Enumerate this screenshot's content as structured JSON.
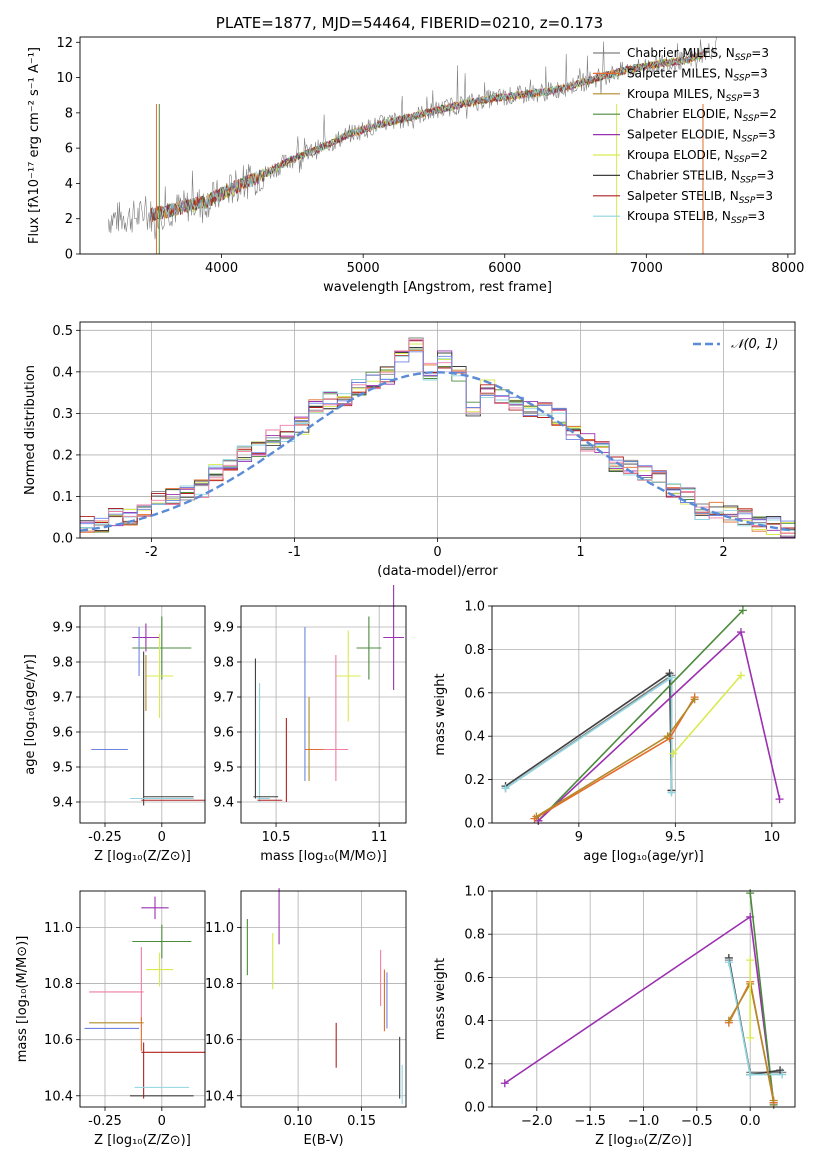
{
  "colors": {
    "chabrier_miles": "#808080",
    "salpeter_miles": "#e36d2c",
    "kroupa_miles": "#b38a2a",
    "chabrier_elodie": "#4c8a3c",
    "salpeter_elodie": "#9b30b0",
    "kroupa_elodie": "#d9ea4e",
    "chabrier_stelib": "#404040",
    "salpeter_stelib": "#b22020",
    "kroupa_stelib": "#8fd6e0",
    "normal_curve": "#5b8bd6",
    "pink": "#ee7fa3",
    "blue": "#6f84e0",
    "grid": "#b0b0b0"
  },
  "chart_data": [
    {
      "type": "line",
      "title": "PLATE=1877, MJD=54464, FIBERID=0210, z=0.173",
      "xlabel": "wavelength [Angstrom, rest frame]",
      "ylabel": "Flux [fλ10⁻¹⁷ erg cm⁻² s⁻¹ A⁻¹]",
      "xlim": [
        3000,
        8050
      ],
      "ylim": [
        0,
        12.3
      ],
      "xticks": [
        4000,
        5000,
        6000,
        7000,
        8000
      ],
      "yticks": [
        0,
        2,
        4,
        6,
        8,
        10,
        12
      ],
      "grid": false,
      "legend_position": "top-right",
      "series": [
        {
          "name": "Chabrier MILES, N",
          "sub": "SSP",
          "eq": "=3",
          "color": "#808080",
          "x": [
            3200,
            3500,
            3700,
            3900,
            4100,
            4300,
            4500,
            4700,
            4900,
            5100,
            5300,
            5500,
            5700,
            5900,
            6100,
            6300,
            6500,
            6700,
            6900,
            7100,
            7300,
            7500
          ],
          "y": [
            2.0,
            2.2,
            2.6,
            3.0,
            3.8,
            4.5,
            5.4,
            6.0,
            6.8,
            7.3,
            7.7,
            8.1,
            8.5,
            8.8,
            9.0,
            9.2,
            9.6,
            10.1,
            10.5,
            10.8,
            11.0,
            11.7
          ]
        },
        {
          "name": "Salpeter MILES, N",
          "sub": "SSP",
          "eq": "=3",
          "color": "#e36d2c"
        },
        {
          "name": "Kroupa MILES, N",
          "sub": "SSP",
          "eq": "=3",
          "color": "#b38a2a"
        },
        {
          "name": "Chabrier ELODIE, N",
          "sub": "SSP",
          "eq": "=2",
          "color": "#4c8a3c"
        },
        {
          "name": "Salpeter ELODIE, N",
          "sub": "SSP",
          "eq": "=3",
          "color": "#9b30b0"
        },
        {
          "name": "Kroupa ELODIE, N",
          "sub": "SSP",
          "eq": "=2",
          "color": "#d9ea4e"
        },
        {
          "name": "Chabrier STELIB, N",
          "sub": "SSP",
          "eq": "=3",
          "color": "#404040"
        },
        {
          "name": "Salpeter STELIB, N",
          "sub": "SSP",
          "eq": "=3",
          "color": "#b22020"
        },
        {
          "name": "Kroupa STELIB, N",
          "sub": "SSP",
          "eq": "=3",
          "color": "#8fd6e0"
        }
      ]
    },
    {
      "type": "histogram",
      "xlabel": "(data-model)/error",
      "ylabel": "Normed distribution",
      "xlim": [
        -2.5,
        2.5
      ],
      "ylim": [
        0,
        0.52
      ],
      "xticks": [
        -2,
        -1,
        0,
        1,
        2
      ],
      "yticks": [
        0.0,
        0.1,
        0.2,
        0.3,
        0.4,
        0.5
      ],
      "grid": true,
      "legend_position": "top-right",
      "legend": "𝒩(0, 1)",
      "normal_curve": {
        "mean": 0,
        "std": 1
      },
      "bin_width": 0.1,
      "bin_start": -2.5,
      "histogram_values": [
        0.03,
        0.03,
        0.05,
        0.05,
        0.06,
        0.09,
        0.1,
        0.11,
        0.12,
        0.16,
        0.17,
        0.2,
        0.21,
        0.24,
        0.25,
        0.27,
        0.32,
        0.33,
        0.34,
        0.36,
        0.38,
        0.39,
        0.43,
        0.47,
        0.4,
        0.43,
        0.4,
        0.31,
        0.36,
        0.34,
        0.33,
        0.31,
        0.31,
        0.29,
        0.25,
        0.23,
        0.21,
        0.18,
        0.17,
        0.16,
        0.14,
        0.11,
        0.1,
        0.06,
        0.07,
        0.06,
        0.05,
        0.03,
        0.03,
        0.02
      ]
    },
    {
      "type": "scatter",
      "xlabel": "Z [log₁₀(Z/Z⊙)]",
      "ylabel": "age  [log₁₀(age/yr)]",
      "xlim": [
        -0.36,
        0.19
      ],
      "ylim": [
        9.34,
        9.96
      ],
      "xticks": [
        -0.25,
        0.0
      ],
      "ytick_labels": [
        "9.4",
        "9.5",
        "9.6",
        "9.7",
        "9.8",
        "9.9"
      ],
      "points": [
        {
          "x": -0.07,
          "y": 9.87,
          "xerr": 0.06,
          "yerr": 0.04,
          "color": "#9b30b0"
        },
        {
          "x": 0.0,
          "y": 9.84,
          "xerr": 0.13,
          "yerr": 0.09,
          "color": "#4c8a3c"
        },
        {
          "x": -0.01,
          "y": 9.76,
          "xerr": 0.06,
          "yerr": 0.12,
          "color": "#d9ea4e"
        },
        {
          "x": -0.1,
          "y": 9.83,
          "xerr": 0.0,
          "yerr": 0.07,
          "color": "#6f84e0"
        },
        {
          "x": -0.07,
          "y": 9.74,
          "xerr": 0.0,
          "yerr": 0.08,
          "color": "#b38a2a"
        },
        {
          "x": -0.23,
          "y": 9.55,
          "xerr": 0.08,
          "yerr": 0.0,
          "color": "#e36d2c"
        },
        {
          "x": -0.23,
          "y": 9.55,
          "xerr": 0.08,
          "yerr": 0.0,
          "color": "#6f84e0"
        },
        {
          "x": -0.08,
          "y": 9.61,
          "xerr": 0.0,
          "yerr": 0.22,
          "color": "#404040"
        },
        {
          "x": 0.03,
          "y": 9.415,
          "xerr": 0.11,
          "yerr": 0.0,
          "color": "#404040"
        },
        {
          "x": 0.05,
          "y": 9.405,
          "xerr": 0.14,
          "yerr": 0.0,
          "color": "#b22020"
        },
        {
          "x": 0.0,
          "y": 9.41,
          "xerr": 0.14,
          "yerr": 0.0,
          "color": "#8fd6e0"
        }
      ]
    },
    {
      "type": "scatter",
      "xlabel": "mass [log₁₀(M/M⊙)]",
      "ylabel": "",
      "xlim": [
        10.33,
        11.13
      ],
      "ylim": [
        9.34,
        9.96
      ],
      "xticks": [
        10.5,
        11.0
      ],
      "ytick_labels": [
        "9.4",
        "9.5",
        "9.6",
        "9.7",
        "9.8",
        "9.9"
      ],
      "points": [
        {
          "x": 11.07,
          "y": 9.87,
          "xerr": 0.05,
          "yerr": 0.15,
          "color": "#9b30b0"
        },
        {
          "x": 10.95,
          "y": 9.84,
          "xerr": 0.06,
          "yerr": 0.09,
          "color": "#4c8a3c"
        },
        {
          "x": 10.85,
          "y": 9.76,
          "xerr": 0.06,
          "yerr": 0.13,
          "color": "#d9ea4e"
        },
        {
          "x": 10.64,
          "y": 9.68,
          "xerr": 0.0,
          "yerr": 0.22,
          "color": "#6f84e0"
        },
        {
          "x": 10.66,
          "y": 9.58,
          "xerr": 0.0,
          "yerr": 0.12,
          "color": "#b38a2a"
        },
        {
          "x": 10.79,
          "y": 9.64,
          "xerr": 0.0,
          "yerr": 0.18,
          "color": "#ee7fa3"
        },
        {
          "x": 10.72,
          "y": 9.55,
          "xerr": 0.08,
          "yerr": 0.0,
          "color": "#e36d2c"
        },
        {
          "x": 10.79,
          "y": 9.55,
          "xerr": 0.06,
          "yerr": 0.0,
          "color": "#ee7fa3"
        },
        {
          "x": 10.4,
          "y": 9.61,
          "xerr": 0.0,
          "yerr": 0.2,
          "color": "#404040"
        },
        {
          "x": 10.42,
          "y": 9.57,
          "xerr": 0.0,
          "yerr": 0.17,
          "color": "#8fd6e0"
        },
        {
          "x": 10.55,
          "y": 9.52,
          "xerr": 0.0,
          "yerr": 0.12,
          "color": "#b22020"
        },
        {
          "x": 10.45,
          "y": 9.415,
          "xerr": 0.06,
          "yerr": 0.0,
          "color": "#404040"
        },
        {
          "x": 10.47,
          "y": 9.405,
          "xerr": 0.06,
          "yerr": 0.0,
          "color": "#b22020"
        },
        {
          "x": 10.44,
          "y": 9.41,
          "xerr": 0.03,
          "yerr": 0.0,
          "color": "#8fd6e0"
        }
      ]
    },
    {
      "type": "line",
      "xlabel": "age  [log₁₀(age/yr)]",
      "ylabel": "mass weight",
      "xlim": [
        8.55,
        10.12
      ],
      "ylim": [
        0,
        1.0
      ],
      "xticks": [
        9.0,
        9.5,
        10.0
      ],
      "yticks": [
        0.0,
        0.2,
        0.4,
        0.6,
        0.8,
        1.0
      ],
      "grid": true,
      "series": [
        {
          "color": "#808080",
          "x": [
            8.62,
            9.48,
            9.48
          ],
          "y": [
            0.16,
            0.68,
            0.15
          ]
        },
        {
          "color": "#404040",
          "x": [
            8.62,
            9.47,
            9.48
          ],
          "y": [
            0.17,
            0.69,
            0.15
          ]
        },
        {
          "color": "#8fd6e0",
          "x": [
            8.62,
            9.48,
            9.48
          ],
          "y": [
            0.16,
            0.67,
            0.14
          ]
        },
        {
          "color": "#4c8a3c",
          "x": [
            8.79,
            9.85
          ],
          "y": [
            0.01,
            0.98
          ]
        },
        {
          "color": "#9b30b0",
          "x": [
            8.79,
            9.84,
            10.04
          ],
          "y": [
            0.01,
            0.88,
            0.11
          ]
        },
        {
          "color": "#e36d2c",
          "x": [
            8.77,
            9.47,
            9.6
          ],
          "y": [
            0.02,
            0.39,
            0.58
          ]
        },
        {
          "color": "#b38a2a",
          "x": [
            8.78,
            9.46,
            9.6
          ],
          "y": [
            0.03,
            0.4,
            0.57
          ]
        },
        {
          "color": "#d9ea4e",
          "x": [
            9.49,
            9.84
          ],
          "y": [
            0.32,
            0.68
          ]
        }
      ]
    },
    {
      "type": "scatter",
      "xlabel": "Z [log₁₀(Z/Z⊙)]",
      "ylabel": "mass [log₁₀(M/M⊙)]",
      "xlim": [
        -0.36,
        0.19
      ],
      "ylim": [
        10.36,
        11.13
      ],
      "xticks": [
        -0.25,
        0.0
      ],
      "ytick_labels": [
        "10.4",
        "10.6",
        "10.8",
        "11.0"
      ],
      "points": [
        {
          "x": -0.03,
          "y": 11.07,
          "xerr": 0.06,
          "yerr": 0.04,
          "color": "#9b30b0"
        },
        {
          "x": 0.0,
          "y": 10.95,
          "xerr": 0.13,
          "yerr": 0.06,
          "color": "#4c8a3c"
        },
        {
          "x": -0.01,
          "y": 10.85,
          "xerr": 0.06,
          "yerr": 0.06,
          "color": "#d9ea4e"
        },
        {
          "x": -0.2,
          "y": 10.77,
          "xerr": 0.12,
          "yerr": 0.0,
          "color": "#ee7fa3"
        },
        {
          "x": -0.09,
          "y": 10.8,
          "xerr": 0.0,
          "yerr": 0.13,
          "color": "#ee7fa3"
        },
        {
          "x": -0.2,
          "y": 10.66,
          "xerr": 0.12,
          "yerr": 0.0,
          "color": "#b38a2a"
        },
        {
          "x": -0.09,
          "y": 10.62,
          "xerr": 0.0,
          "yerr": 0.06,
          "color": "#e36d2c"
        },
        {
          "x": -0.22,
          "y": 10.64,
          "xerr": 0.12,
          "yerr": 0.0,
          "color": "#6f84e0"
        },
        {
          "x": 0.05,
          "y": 10.555,
          "xerr": 0.14,
          "yerr": 0.0,
          "color": "#b22020"
        },
        {
          "x": -0.08,
          "y": 10.49,
          "xerr": 0.0,
          "yerr": 0.1,
          "color": "#b22020"
        },
        {
          "x": 0.0,
          "y": 10.43,
          "xerr": 0.12,
          "yerr": 0.0,
          "color": "#8fd6e0"
        },
        {
          "x": 0.0,
          "y": 10.4,
          "xerr": 0.14,
          "yerr": 0.0,
          "color": "#404040"
        }
      ]
    },
    {
      "type": "scatter",
      "xlabel": "E(B-V)",
      "ylabel": "",
      "xlim": [
        0.055,
        0.185
      ],
      "ylim": [
        10.36,
        11.13
      ],
      "xticks": [
        0.1,
        0.15
      ],
      "xtick_labels": [
        "0.10",
        "0.15"
      ],
      "ytick_labels": [
        "10.4",
        "10.6",
        "10.8",
        "11.0"
      ],
      "points": [
        {
          "x": 0.06,
          "y": 10.93,
          "yerr": 0.1,
          "color": "#4c8a3c"
        },
        {
          "x": 0.08,
          "y": 10.88,
          "yerr": 0.1,
          "color": "#d9ea4e"
        },
        {
          "x": 0.085,
          "y": 11.04,
          "yerr": 0.1,
          "color": "#9b30b0"
        },
        {
          "x": 0.13,
          "y": 10.58,
          "yerr": 0.08,
          "color": "#b22020"
        },
        {
          "x": 0.165,
          "y": 10.82,
          "yerr": 0.1,
          "color": "#ee7fa3"
        },
        {
          "x": 0.168,
          "y": 10.74,
          "yerr": 0.11,
          "color": "#e36d2c"
        },
        {
          "x": 0.17,
          "y": 10.74,
          "yerr": 0.1,
          "color": "#6f84e0"
        },
        {
          "x": 0.18,
          "y": 10.5,
          "yerr": 0.11,
          "color": "#404040"
        },
        {
          "x": 0.182,
          "y": 10.44,
          "yerr": 0.07,
          "color": "#8fd6e0"
        }
      ]
    },
    {
      "type": "line",
      "xlabel": "Z [log₁₀(Z/Z⊙)]",
      "ylabel": "mass weight",
      "xlim": [
        -2.42,
        0.42
      ],
      "ylim": [
        0,
        1.0
      ],
      "xticks": [
        -2.0,
        -1.5,
        -1.0,
        -0.5,
        0.0
      ],
      "xtick_labels": [
        "−2.0",
        "−1.5",
        "−1.0",
        "−0.5",
        "0.0"
      ],
      "yticks": [
        0.0,
        0.2,
        0.4,
        0.6,
        0.8,
        1.0
      ],
      "grid": true,
      "series": [
        {
          "color": "#9b30b0",
          "x": [
            -2.3,
            0.0,
            0.22
          ],
          "y": [
            0.11,
            0.88,
            0.02
          ]
        },
        {
          "color": "#4c8a3c",
          "x": [
            0.0,
            0.22
          ],
          "y": [
            0.99,
            0.01
          ]
        },
        {
          "color": "#808080",
          "x": [
            -0.2,
            0.0,
            0.3
          ],
          "y": [
            0.68,
            0.16,
            0.16
          ]
        },
        {
          "color": "#404040",
          "x": [
            -0.2,
            0.0,
            0.28
          ],
          "y": [
            0.69,
            0.15,
            0.17
          ]
        },
        {
          "color": "#8fd6e0",
          "x": [
            -0.2,
            0.0,
            0.3
          ],
          "y": [
            0.67,
            0.15,
            0.15
          ]
        },
        {
          "color": "#e36d2c",
          "x": [
            -0.2,
            0.0,
            0.22
          ],
          "y": [
            0.39,
            0.58,
            0.02
          ]
        },
        {
          "color": "#b38a2a",
          "x": [
            -0.2,
            0.0,
            0.22
          ],
          "y": [
            0.4,
            0.57,
            0.03
          ]
        },
        {
          "color": "#d9ea4e",
          "x": [
            0.0,
            0.0
          ],
          "y": [
            0.68,
            0.32
          ]
        }
      ]
    }
  ]
}
